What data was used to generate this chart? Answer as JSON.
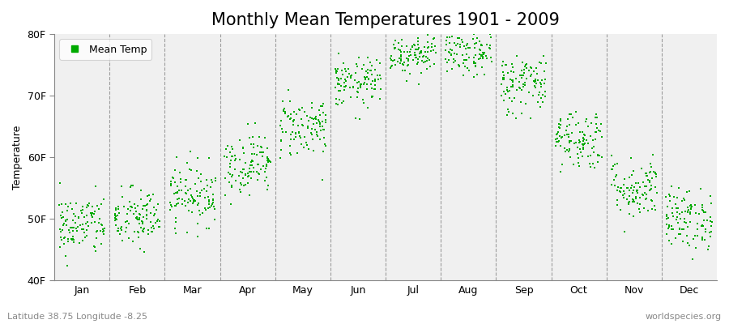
{
  "title": "Monthly Mean Temperatures 1901 - 2009",
  "ylabel": "Temperature",
  "dot_color": "#00AA00",
  "dot_size": 4,
  "bg_color": "#F0F0F0",
  "fig_bg_color": "#FFFFFF",
  "ylim": [
    40,
    80
  ],
  "yticks": [
    40,
    50,
    60,
    70,
    80
  ],
  "ytick_labels": [
    "40F",
    "50F",
    "60F",
    "70F",
    "80F"
  ],
  "months": [
    "Jan",
    "Feb",
    "Mar",
    "Apr",
    "May",
    "Jun",
    "Jul",
    "Aug",
    "Sep",
    "Oct",
    "Nov",
    "Dec"
  ],
  "legend_label": "Mean Temp",
  "bottom_left_text": "Latitude 38.75 Longitude -8.25",
  "bottom_right_text": "worldspecies.org",
  "title_fontsize": 15,
  "label_fontsize": 9,
  "tick_fontsize": 9,
  "monthly_means": [
    49,
    50,
    54,
    59,
    65,
    72,
    77,
    77,
    72,
    63,
    55,
    50
  ],
  "monthly_stds": [
    2.5,
    2.5,
    2.5,
    2.5,
    2.5,
    2.0,
    1.8,
    2.0,
    2.5,
    2.5,
    2.5,
    2.5
  ],
  "n_years": 109
}
